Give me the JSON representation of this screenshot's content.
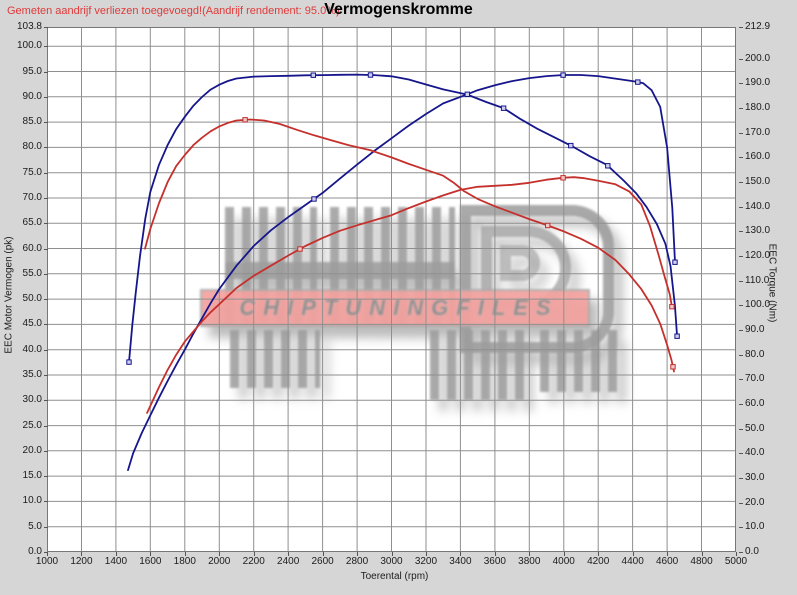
{
  "header": {
    "warning": "Gemeten aandrijf verliezen toegevoegd!(Aandrijf rendement: 95.0%)",
    "title": "Vermogenskromme"
  },
  "watermark": {
    "text": "CHIPTUNINGFILES",
    "band_color": "#f4a29f",
    "letter_color": "#9c9c9c"
  },
  "colors": {
    "page_bg": "#d6d6d6",
    "plot_bg": "#ffffff",
    "grid": "#8f8f8f",
    "border": "#777777",
    "blue_curve": "#16168c",
    "red_curve": "#c5302c",
    "warning_text": "#e03a3a",
    "label_text": "#1c1c1c"
  },
  "axes": {
    "left": {
      "title": "EEC Motor Vermogen (pk)",
      "values": [
        103.8,
        100,
        95,
        90,
        85,
        80,
        75,
        70,
        65,
        60,
        55,
        50,
        45,
        40,
        35,
        30,
        25,
        20,
        15,
        10,
        5,
        0
      ],
      "labels": [
        "103.8",
        "100.0",
        "95.0",
        "90.0",
        "85.0",
        "80.0",
        "75.0",
        "70.0",
        "65.0",
        "60.0",
        "55.0",
        "50.0",
        "45.0",
        "40.0",
        "35.0",
        "30.0",
        "25.0",
        "20.0",
        "15.0",
        "10.0",
        "5.0",
        "0.0"
      ]
    },
    "right": {
      "title": "EEC Torque (Nm)",
      "values": [
        212.9,
        200,
        190,
        180,
        170,
        160,
        150,
        140,
        130,
        120,
        110,
        100,
        90,
        80,
        70,
        60,
        50,
        40,
        30,
        20,
        10,
        0
      ],
      "labels": [
        "212.9",
        "200.0",
        "190.0",
        "180.0",
        "170.0",
        "160.0",
        "150.0",
        "140.0",
        "130.0",
        "120.0",
        "110.0",
        "100.0",
        "90.0",
        "80.0",
        "70.0",
        "60.0",
        "50.0",
        "40.0",
        "30.0",
        "20.0",
        "10.0",
        "0.0"
      ]
    },
    "x": {
      "title": "Toerental (rpm)",
      "values": [
        1000,
        1200,
        1400,
        1600,
        1800,
        2000,
        2200,
        2400,
        2600,
        2800,
        3000,
        3200,
        3400,
        3600,
        3800,
        4000,
        4200,
        4400,
        4600,
        4800,
        5000
      ],
      "labels": [
        "1000",
        "1200",
        "1400",
        "1600",
        "1800",
        "2000",
        "2200",
        "2400",
        "2600",
        "2800",
        "3000",
        "3200",
        "3400",
        "3600",
        "3800",
        "4000",
        "4200",
        "4400",
        "4600",
        "4800",
        "5000"
      ]
    }
  },
  "chart_data": {
    "type": "line",
    "title": "Vermogenskromme",
    "xlabel": "Toerental (rpm)",
    "ylabel_left": "EEC Motor Vermogen (pk)",
    "ylabel_right": "EEC Torque (Nm)",
    "x_range": [
      1000,
      5000
    ],
    "y_left_range": [
      0,
      103.8
    ],
    "y_right_range": [
      0,
      212.9
    ],
    "grid": true,
    "legend": "none",
    "series": [
      {
        "name": "blue_torque_nm",
        "axis": "right",
        "color": "#16168c",
        "marker_fill": "#cfcfef",
        "points": [
          [
            1476,
            77
          ],
          [
            1495,
            92
          ],
          [
            1515,
            105
          ],
          [
            1540,
            120
          ],
          [
            1570,
            135
          ],
          [
            1600,
            146
          ],
          [
            1650,
            157
          ],
          [
            1700,
            165
          ],
          [
            1750,
            171.5
          ],
          [
            1800,
            176.5
          ],
          [
            1850,
            181
          ],
          [
            1900,
            184.5
          ],
          [
            1950,
            187.5
          ],
          [
            2000,
            189.5
          ],
          [
            2050,
            191
          ],
          [
            2100,
            192
          ],
          [
            2200,
            192.8
          ],
          [
            2300,
            193
          ],
          [
            2400,
            193.1
          ],
          [
            2500,
            193.3
          ],
          [
            2600,
            193.4
          ],
          [
            2700,
            193.5
          ],
          [
            2800,
            193.6
          ],
          [
            2900,
            193.4
          ],
          [
            3000,
            192.9
          ],
          [
            3100,
            191.6
          ],
          [
            3200,
            189.6
          ],
          [
            3300,
            187.6
          ],
          [
            3440,
            185.5
          ],
          [
            3550,
            182.5
          ],
          [
            3650,
            180
          ],
          [
            3750,
            175.5
          ],
          [
            3850,
            171.5
          ],
          [
            3950,
            168
          ],
          [
            4050,
            164.5
          ],
          [
            4150,
            160.5
          ],
          [
            4250,
            157
          ],
          [
            4350,
            150.5
          ],
          [
            4420,
            145.5
          ],
          [
            4480,
            140
          ],
          [
            4540,
            133
          ],
          [
            4590,
            125
          ],
          [
            4620,
            116
          ],
          [
            4645,
            100
          ],
          [
            4658,
            87.5
          ]
        ],
        "markers": [
          1476,
          2546,
          2878,
          3651,
          4041,
          4256,
          4658
        ]
      },
      {
        "name": "blue_power_pk",
        "axis": "left",
        "color": "#16168c",
        "marker_fill": "#cfcfef",
        "points": [
          [
            1470,
            16.2
          ],
          [
            1500,
            19.5
          ],
          [
            1550,
            23.5
          ],
          [
            1600,
            27
          ],
          [
            1650,
            30.5
          ],
          [
            1700,
            33.8
          ],
          [
            1750,
            37
          ],
          [
            1800,
            40
          ],
          [
            1850,
            43.2
          ],
          [
            1900,
            46.2
          ],
          [
            1950,
            49.2
          ],
          [
            2000,
            52
          ],
          [
            2100,
            56.6
          ],
          [
            2200,
            60.5
          ],
          [
            2300,
            63.6
          ],
          [
            2400,
            66.2
          ],
          [
            2500,
            68.6
          ],
          [
            2600,
            71
          ],
          [
            2700,
            73.8
          ],
          [
            2800,
            76.6
          ],
          [
            2900,
            79.3
          ],
          [
            3000,
            81.8
          ],
          [
            3100,
            84.3
          ],
          [
            3200,
            86.6
          ],
          [
            3300,
            88.7
          ],
          [
            3440,
            90.5
          ],
          [
            3500,
            91.3
          ],
          [
            3600,
            92.3
          ],
          [
            3700,
            93.1
          ],
          [
            3800,
            93.7
          ],
          [
            3900,
            94.1
          ],
          [
            4000,
            94.3
          ],
          [
            4100,
            94.3
          ],
          [
            4200,
            94.1
          ],
          [
            4300,
            93.6
          ],
          [
            4400,
            93.1
          ],
          [
            4460,
            92.7
          ],
          [
            4510,
            91.3
          ],
          [
            4560,
            88
          ],
          [
            4600,
            80
          ],
          [
            4630,
            68
          ],
          [
            4646,
            57.3
          ]
        ],
        "markers": [
          2550,
          3440,
          3996,
          4430,
          4646
        ]
      },
      {
        "name": "red_torque_nm",
        "axis": "right",
        "color": "#c5302c",
        "marker_fill": "#efc9c9",
        "points": [
          [
            1569,
            123
          ],
          [
            1600,
            131
          ],
          [
            1650,
            141.5
          ],
          [
            1700,
            150
          ],
          [
            1750,
            156.5
          ],
          [
            1800,
            161
          ],
          [
            1850,
            165
          ],
          [
            1900,
            168
          ],
          [
            1950,
            170.6
          ],
          [
            2000,
            172.6
          ],
          [
            2050,
            174
          ],
          [
            2100,
            175
          ],
          [
            2180,
            175.4
          ],
          [
            2260,
            175
          ],
          [
            2350,
            173.6
          ],
          [
            2450,
            171.2
          ],
          [
            2550,
            169
          ],
          [
            2650,
            167
          ],
          [
            2750,
            165
          ],
          [
            2875,
            163
          ],
          [
            3000,
            160
          ],
          [
            3100,
            157.4
          ],
          [
            3200,
            155
          ],
          [
            3300,
            152.6
          ],
          [
            3360,
            149.8
          ],
          [
            3420,
            146.4
          ],
          [
            3500,
            143.2
          ],
          [
            3600,
            140.2
          ],
          [
            3700,
            137.6
          ],
          [
            3800,
            135
          ],
          [
            3900,
            132.6
          ],
          [
            4000,
            130
          ],
          [
            4100,
            127
          ],
          [
            4200,
            123.4
          ],
          [
            4300,
            118.4
          ],
          [
            4380,
            112.6
          ],
          [
            4450,
            106.6
          ],
          [
            4510,
            100
          ],
          [
            4560,
            92.6
          ],
          [
            4600,
            84
          ],
          [
            4625,
            78
          ],
          [
            4640,
            73.2
          ]
        ],
        "markers": [
          2150,
          3907,
          4634
        ]
      },
      {
        "name": "red_power_pk",
        "axis": "left",
        "color": "#c5302c",
        "marker_fill": "#efc9c9",
        "points": [
          [
            1581,
            27.5
          ],
          [
            1650,
            32.6
          ],
          [
            1700,
            36
          ],
          [
            1750,
            39
          ],
          [
            1800,
            41.6
          ],
          [
            1850,
            43.6
          ],
          [
            1900,
            45.6
          ],
          [
            1950,
            47.4
          ],
          [
            2000,
            49
          ],
          [
            2100,
            52.2
          ],
          [
            2200,
            54.6
          ],
          [
            2300,
            56.6
          ],
          [
            2400,
            58.6
          ],
          [
            2500,
            60.5
          ],
          [
            2600,
            62.1
          ],
          [
            2700,
            63.5
          ],
          [
            2800,
            64.6
          ],
          [
            2900,
            65.6
          ],
          [
            3000,
            66.6
          ],
          [
            3100,
            68
          ],
          [
            3200,
            69.3
          ],
          [
            3300,
            70.5
          ],
          [
            3400,
            71.6
          ],
          [
            3500,
            72.2
          ],
          [
            3600,
            72.4
          ],
          [
            3700,
            72.6
          ],
          [
            3800,
            73
          ],
          [
            3900,
            73.6
          ],
          [
            4000,
            74
          ],
          [
            4060,
            74.1
          ],
          [
            4120,
            73.9
          ],
          [
            4200,
            73.4
          ],
          [
            4300,
            72.7
          ],
          [
            4380,
            71.3
          ],
          [
            4450,
            68.7
          ],
          [
            4500,
            64.5
          ],
          [
            4550,
            58.8
          ],
          [
            4585,
            54.5
          ],
          [
            4615,
            51
          ],
          [
            4628,
            48.5
          ]
        ],
        "markers": [
          2469,
          3996,
          4628
        ]
      }
    ]
  }
}
